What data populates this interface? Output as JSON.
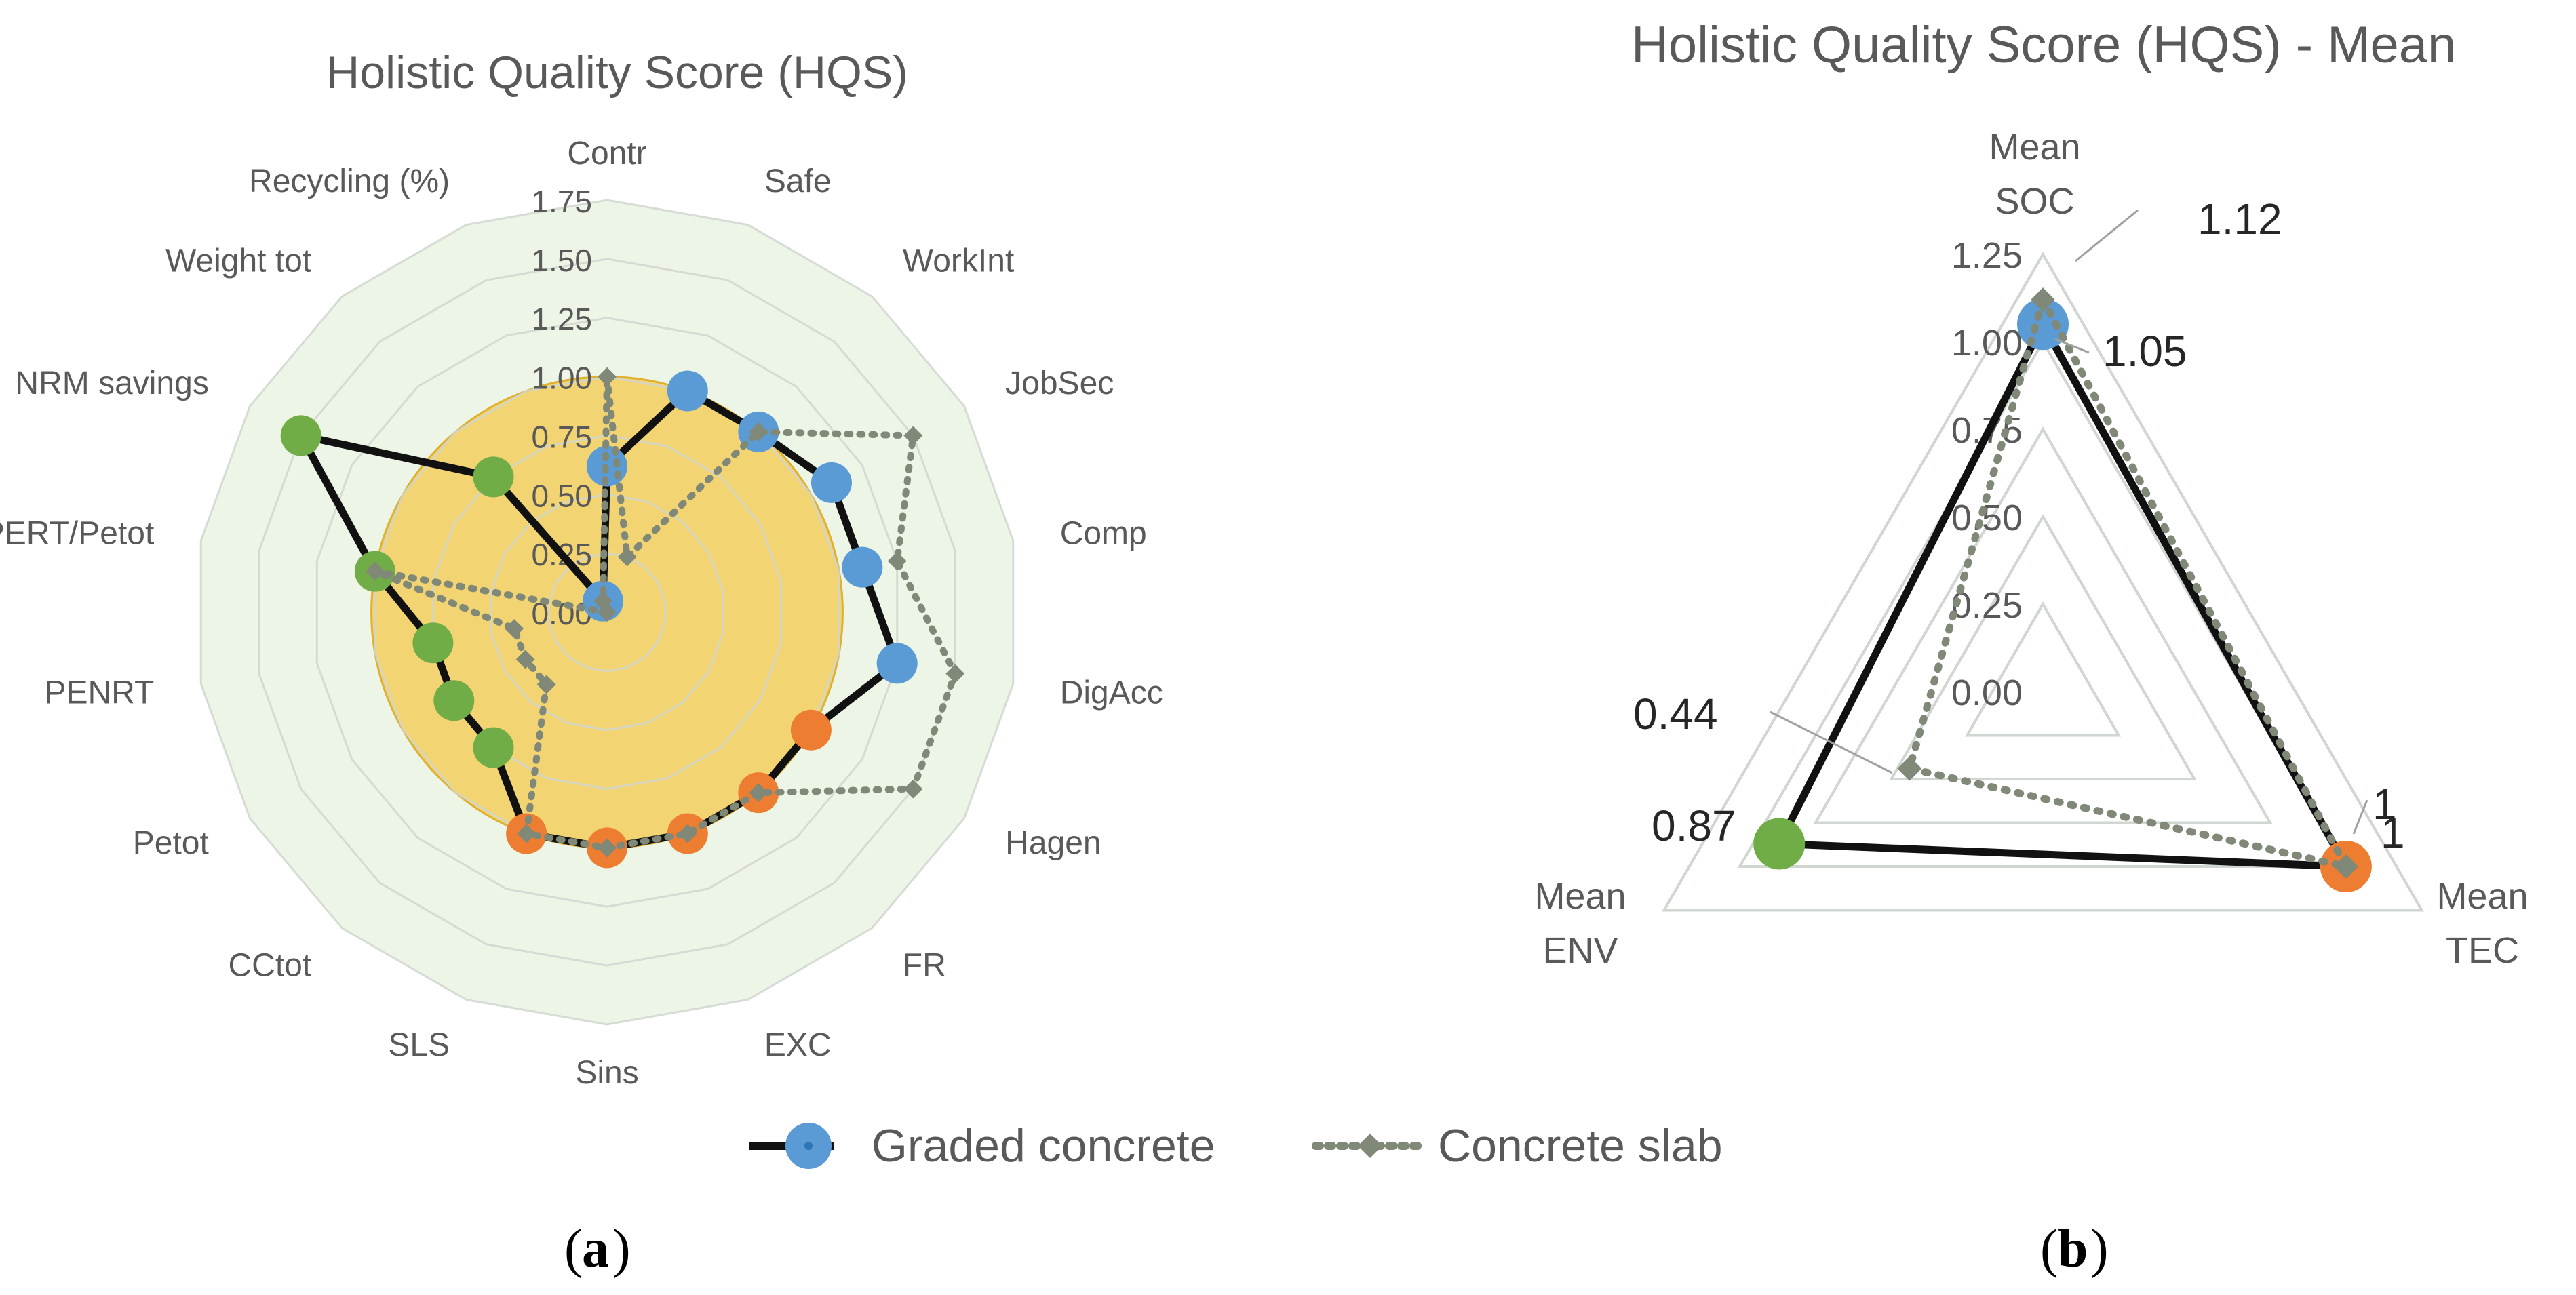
{
  "colors": {
    "graded_line": "#111111",
    "slab_line": "#808878",
    "soc_marker": "#5b9bd5",
    "tec_marker": "#ed7d31",
    "env_marker": "#70ad47",
    "fill_outer": "#edf5e6",
    "fill_inner": "#f3c84c",
    "grid": "#d0d6d0",
    "text": "#595959"
  },
  "panel_captions": {
    "a": "a",
    "b": "b"
  },
  "legend": [
    {
      "name": "Graded concrete",
      "style": "solid-black-with-circle"
    },
    {
      "name": "Concrete slab",
      "style": "dotted-grey-with-diamond"
    }
  ],
  "chart_data": [
    {
      "type": "radar",
      "title": "Holistic Quality Score (HQS)",
      "rmax": 1.75,
      "tick_labels": [
        "0.00",
        "0.25",
        "0.50",
        "0.75",
        "1.00",
        "1.25",
        "1.50",
        "1.75"
      ],
      "categories": [
        "Contr",
        "Safe",
        "WorkInt",
        "JobSec",
        "Comp",
        "DigAcc",
        "Hagen",
        "FR",
        "EXC",
        "Sins",
        "SLS",
        "CCtot",
        "Petot",
        "PENRT",
        "PERT/Petot",
        "NRM savings",
        "Weight tot",
        "Recycling (%)"
      ],
      "category_groups": [
        "SOC",
        "SOC",
        "SOC",
        "SOC",
        "SOC",
        "SOC",
        "TEC",
        "TEC",
        "TEC",
        "TEC",
        "TEC",
        "ENV",
        "ENV",
        "ENV",
        "ENV",
        "ENV",
        "ENV",
        "SOC"
      ],
      "background_bands": [
        {
          "name": "outer",
          "value": 1.75
        },
        {
          "name": "inner",
          "value": 1.0
        }
      ],
      "series": [
        {
          "name": "Graded concrete",
          "values": [
            0.62,
            1.0,
            1.0,
            1.1,
            1.1,
            1.25,
            1.0,
            1.0,
            1.0,
            1.0,
            1.0,
            0.75,
            0.75,
            0.75,
            1.0,
            1.5,
            0.75,
            0.05
          ]
        },
        {
          "name": "Concrete slab",
          "values": [
            1.0,
            0.25,
            1.0,
            1.5,
            1.25,
            1.5,
            1.5,
            1.0,
            1.0,
            1.0,
            1.0,
            0.4,
            0.4,
            0.4,
            1.0,
            0.0,
            0.0,
            0.05
          ]
        }
      ]
    },
    {
      "type": "radar",
      "title": "Holistic Quality Score (HQS) - Mean",
      "rmax": 1.25,
      "tick_labels": [
        "0.00",
        "0.25",
        "0.50",
        "0.75",
        "1.00",
        "1.25"
      ],
      "categories": [
        "Mean SOC",
        "Mean TEC",
        "Mean ENV"
      ],
      "series": [
        {
          "name": "Graded concrete",
          "values": [
            1.05,
            1.0,
            0.87
          ]
        },
        {
          "name": "Concrete slab",
          "values": [
            1.12,
            1.0,
            0.44
          ]
        }
      ],
      "data_labels": [
        "1.12",
        "1.05",
        "1",
        "1",
        "0.87",
        "0.44"
      ]
    }
  ]
}
